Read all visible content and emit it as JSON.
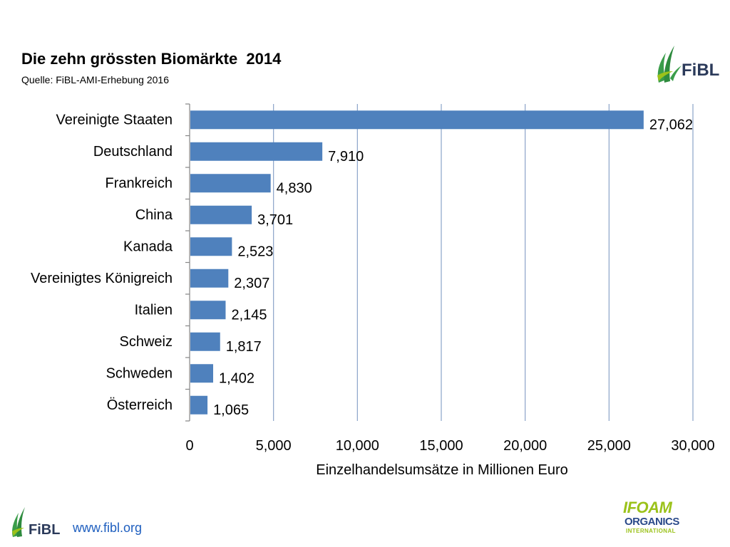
{
  "header": {
    "title": "Die zehn grössten Biomärkte  2014",
    "source": "Quelle: FiBL-AMI-Erhebung 2016",
    "logo_text": "FiBL"
  },
  "footer": {
    "logo_text": "FiBL",
    "url": "www.fibl.org",
    "partner_line1": "IFOAM",
    "partner_line2": "ORGANICS",
    "partner_line3": "INTERNATIONAL"
  },
  "colors": {
    "bar": "#4f81bd",
    "grid": "#8aa3c8",
    "axis": "#868686",
    "fibl_green": "#3a9d4a",
    "url_blue": "#1f5fbf"
  },
  "chart_data": {
    "type": "bar",
    "orientation": "horizontal",
    "categories": [
      "Vereinigte Staaten",
      "Deutschland",
      "Frankreich",
      "China",
      "Kanada",
      "Vereinigtes Königreich",
      "Italien",
      "Schweiz",
      "Schweden",
      "Österreich"
    ],
    "values": [
      27062,
      7910,
      4830,
      3701,
      2523,
      2307,
      2145,
      1817,
      1402,
      1065
    ],
    "value_labels": [
      "27,062",
      "7,910",
      "4,830",
      "3,701",
      "2,523",
      "2,307",
      "2,145",
      "1,817",
      "1,402",
      "1,065"
    ],
    "title": "Die zehn grössten Biomärkte  2014",
    "xlabel": "Einzelhandelsumsätze in Millionen Euro",
    "ylabel": "",
    "xlim": [
      0,
      30000
    ],
    "xticks": [
      0,
      5000,
      10000,
      15000,
      20000,
      25000,
      30000
    ],
    "xtick_labels": [
      "0",
      "5,000",
      "10,000",
      "15,000",
      "20,000",
      "25,000",
      "30,000"
    ],
    "grid": "vertical",
    "legend": "none"
  }
}
